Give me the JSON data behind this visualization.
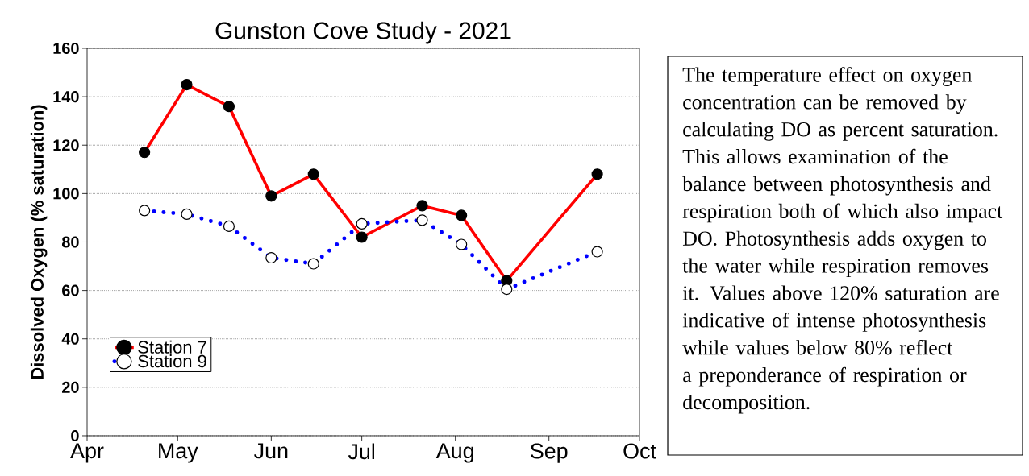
{
  "chart_data": {
    "type": "line",
    "title": "Gunston Cove Study - 2021",
    "ylabel": "Dissolved Oxygen (% saturation)",
    "x": [
      "2021-04-20",
      "2021-05-04",
      "2021-05-18",
      "2021-06-01",
      "2021-06-15",
      "2021-07-01",
      "2021-07-21",
      "2021-08-03",
      "2021-08-18",
      "2021-09-17"
    ],
    "series": [
      {
        "name": "Station 7",
        "color": "#ff0000",
        "line_style": "solid",
        "values": [
          117,
          145,
          136,
          99,
          108,
          82,
          95,
          91,
          64,
          108
        ]
      },
      {
        "name": "Station 9",
        "color": "#0000ff",
        "line_style": "dotted",
        "values": [
          93,
          91.5,
          86.5,
          73.5,
          71,
          87.5,
          89,
          79,
          60.5,
          76
        ]
      }
    ],
    "xlim": [
      "2021-04-01",
      "2021-10-01"
    ],
    "xticks": [
      {
        "value": "2021-04-01",
        "label": "Apr"
      },
      {
        "value": "2021-05-01",
        "label": "May"
      },
      {
        "value": "2021-06-01",
        "label": "Jun"
      },
      {
        "value": "2021-07-01",
        "label": "Jul"
      },
      {
        "value": "2021-08-01",
        "label": "Aug"
      },
      {
        "value": "2021-09-01",
        "label": "Sep"
      },
      {
        "value": "2021-10-01",
        "label": "Oct"
      }
    ],
    "ylim": [
      0,
      160
    ],
    "yticks": [
      0,
      20,
      40,
      60,
      80,
      100,
      120,
      140,
      160
    ],
    "grid": "y",
    "legend": "bottom left",
    "marker": "circle",
    "annotations": [
      "The temperature effect on oxygen concentration can be removed by calculating DO as percent saturation. This allows examination of the balance between photosynthesis and respiration both of which also impact DO. Photosynthesis adds oxygen to the water while respiration removes it. Values above 120% saturation are indicative of intense photosynthesis while values below 80% reflect a preponderance of respiration or decomposition."
    ]
  }
}
